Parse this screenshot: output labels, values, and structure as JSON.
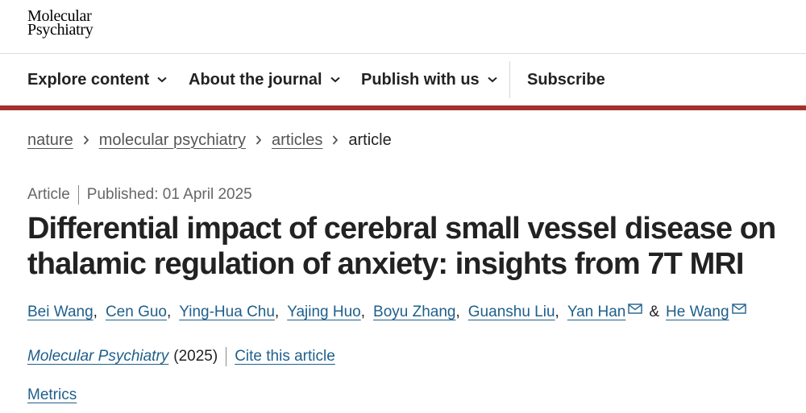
{
  "logo": {
    "line1": "Molecular",
    "line2": "Psychiatry"
  },
  "nav": {
    "explore": "Explore content",
    "about": "About the journal",
    "publish": "Publish with us",
    "subscribe": "Subscribe"
  },
  "breadcrumb": {
    "items": [
      "nature",
      "molecular psychiatry",
      "articles"
    ],
    "current": "article"
  },
  "article": {
    "type": "Article",
    "published": "Published: 01 April 2025",
    "title_line1": "Differential impact of cerebral small vessel disease on",
    "title_line2": "thalamic regulation of anxiety: insights from 7T MRI",
    "authors": [
      "Bei Wang",
      "Cen Guo",
      "Ying-Hua Chu",
      "Yajing Huo",
      "Boyu Zhang",
      "Guanshu Liu",
      "Yan Han",
      "He Wang"
    ],
    "author_separator": ",",
    "ampersand": "&",
    "journal": "Molecular Psychiatry",
    "year": "(2025)",
    "cite_label": "Cite this article",
    "metrics_label": "Metrics"
  },
  "colors": {
    "accent_bar": "#a5302b",
    "link": "#1f5f8b"
  },
  "icons": {
    "nav_dropdown": "chevron-down-icon",
    "breadcrumb_sep": "chevron-right-icon",
    "author_contact": "mail-icon"
  }
}
